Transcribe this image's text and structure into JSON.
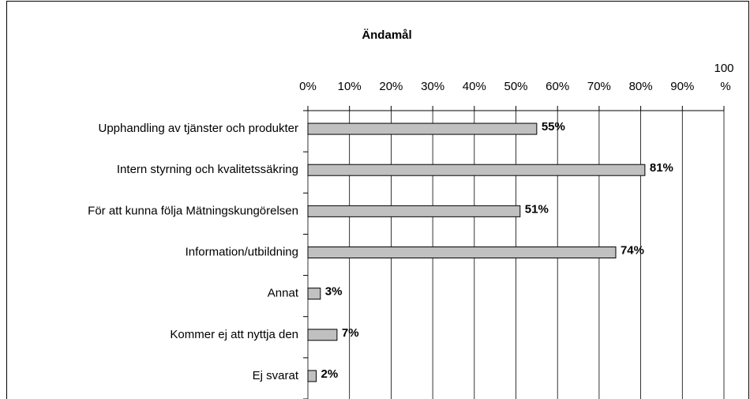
{
  "chart_data": {
    "type": "bar",
    "orientation": "horizontal",
    "title": "Ändamål",
    "categories": [
      "Upphandling av tjänster och produkter",
      "Intern styrning och kvalitetssäkring",
      "För att kunna följa Mätningskungörelsen",
      "Information/utbildning",
      "Annat",
      "Kommer ej att nyttja den",
      "Ej svarat"
    ],
    "values": [
      55,
      81,
      51,
      74,
      3,
      7,
      2
    ],
    "value_labels": [
      "55%",
      "81%",
      "51%",
      "74%",
      "3%",
      "7%",
      "2%"
    ],
    "color": "#c0c0c0",
    "xlim": [
      0,
      100
    ],
    "xticks": [
      {
        "value": 0,
        "label": "0%"
      },
      {
        "value": 10,
        "label": "10%"
      },
      {
        "value": 20,
        "label": "20%"
      },
      {
        "value": 30,
        "label": "30%"
      },
      {
        "value": 40,
        "label": "40%"
      },
      {
        "value": 50,
        "label": "50%"
      },
      {
        "value": 60,
        "label": "60%"
      },
      {
        "value": 70,
        "label": "70%"
      },
      {
        "value": 80,
        "label": "80%"
      },
      {
        "value": 90,
        "label": "90%"
      },
      {
        "value": 100,
        "label": "100 %"
      }
    ],
    "grid": true
  }
}
